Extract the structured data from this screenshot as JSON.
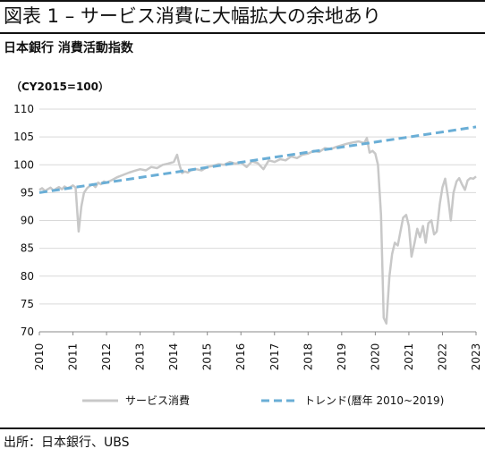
{
  "title": "図表 1 – サービス消費に大幅拡大の余地あり",
  "subtitle": "日本銀行 消費活動指数",
  "source": "出所：日本銀行、UBS",
  "colors": {
    "service": "#c8c8c8",
    "trend": "#6aaed6"
  },
  "chart_data": {
    "type": "line",
    "title": "図表 1 – サービス消費に大幅拡大の余地あり",
    "subtitle": "日本銀行 消費活動指数",
    "unit_label": "（CY2015=100）",
    "xlabel": "",
    "ylabel": "",
    "xlim": [
      2010,
      2023
    ],
    "ylim": [
      70,
      110
    ],
    "x_ticks": [
      "2010",
      "2011",
      "2012",
      "2013",
      "2014",
      "2015",
      "2016",
      "2017",
      "2018",
      "2019",
      "2020",
      "2021",
      "2022",
      "2023"
    ],
    "y_ticks": [
      "70",
      "75",
      "80",
      "85",
      "90",
      "95",
      "100",
      "105",
      "110"
    ],
    "grid": "horizontal",
    "legend_position": "bottom",
    "series": [
      {
        "name": "サービス消費",
        "style": "solid",
        "color": "#c8c8c8",
        "x": [
          2010.0,
          2010.08,
          2010.17,
          2010.25,
          2010.33,
          2010.42,
          2010.5,
          2010.58,
          2010.67,
          2010.75,
          2010.83,
          2010.92,
          2011.0,
          2011.08,
          2011.17,
          2011.25,
          2011.33,
          2011.42,
          2011.5,
          2011.58,
          2011.67,
          2011.75,
          2011.83,
          2011.92,
          2012.0,
          2012.17,
          2012.33,
          2012.5,
          2012.67,
          2012.83,
          2013.0,
          2013.17,
          2013.33,
          2013.5,
          2013.67,
          2013.83,
          2014.0,
          2014.1,
          2014.17,
          2014.25,
          2014.33,
          2014.42,
          2014.5,
          2014.67,
          2014.83,
          2015.0,
          2015.17,
          2015.33,
          2015.5,
          2015.67,
          2015.83,
          2016.0,
          2016.17,
          2016.33,
          2016.5,
          2016.67,
          2016.83,
          2017.0,
          2017.17,
          2017.33,
          2017.5,
          2017.67,
          2017.83,
          2018.0,
          2018.17,
          2018.33,
          2018.5,
          2018.67,
          2018.83,
          2019.0,
          2019.17,
          2019.33,
          2019.5,
          2019.67,
          2019.75,
          2019.83,
          2019.92,
          2020.0,
          2020.08,
          2020.17,
          2020.25,
          2020.33,
          2020.42,
          2020.5,
          2020.58,
          2020.67,
          2020.75,
          2020.83,
          2020.92,
          2021.0,
          2021.08,
          2021.17,
          2021.25,
          2021.33,
          2021.42,
          2021.5,
          2021.58,
          2021.67,
          2021.75,
          2021.83,
          2021.92,
          2022.0,
          2022.08,
          2022.17,
          2022.25,
          2022.33,
          2022.42,
          2022.5,
          2022.58,
          2022.67,
          2022.75,
          2022.83,
          2022.92,
          2023.0
        ],
        "y": [
          95.5,
          95.8,
          95.3,
          95.6,
          95.9,
          95.4,
          95.7,
          96.0,
          95.6,
          96.1,
          95.8,
          96.0,
          96.3,
          95.9,
          88.0,
          92.5,
          95.0,
          95.8,
          96.2,
          96.5,
          96.0,
          96.8,
          96.5,
          97.0,
          96.8,
          97.3,
          97.8,
          98.2,
          98.6,
          98.9,
          99.2,
          99.0,
          99.6,
          99.4,
          100.0,
          100.2,
          100.5,
          101.8,
          100.0,
          98.5,
          98.8,
          98.6,
          99.0,
          99.2,
          99.0,
          99.6,
          99.8,
          100.1,
          100.0,
          100.5,
          100.2,
          100.4,
          99.6,
          100.6,
          100.3,
          99.2,
          100.8,
          100.5,
          101.0,
          100.8,
          101.5,
          101.2,
          101.8,
          102.0,
          102.5,
          102.3,
          103.0,
          102.8,
          103.2,
          103.5,
          103.8,
          104.0,
          104.2,
          103.9,
          104.8,
          102.2,
          102.5,
          102.0,
          100.0,
          91.0,
          72.5,
          71.5,
          80.0,
          84.0,
          86.0,
          85.5,
          88.0,
          90.5,
          91.0,
          89.0,
          83.5,
          86.0,
          88.5,
          87.0,
          89.0,
          86.0,
          89.5,
          90.0,
          87.5,
          88.0,
          93.0,
          96.0,
          97.5,
          94.0,
          90.0,
          95.0,
          97.0,
          97.6,
          96.5,
          95.5,
          97.2,
          97.6,
          97.5,
          97.9
        ]
      },
      {
        "name": "トレンド(暦年 2010~2019)",
        "style": "dashed",
        "color": "#6aaed6",
        "x": [
          2010,
          2023
        ],
        "y": [
          95.0,
          106.8
        ]
      }
    ]
  }
}
